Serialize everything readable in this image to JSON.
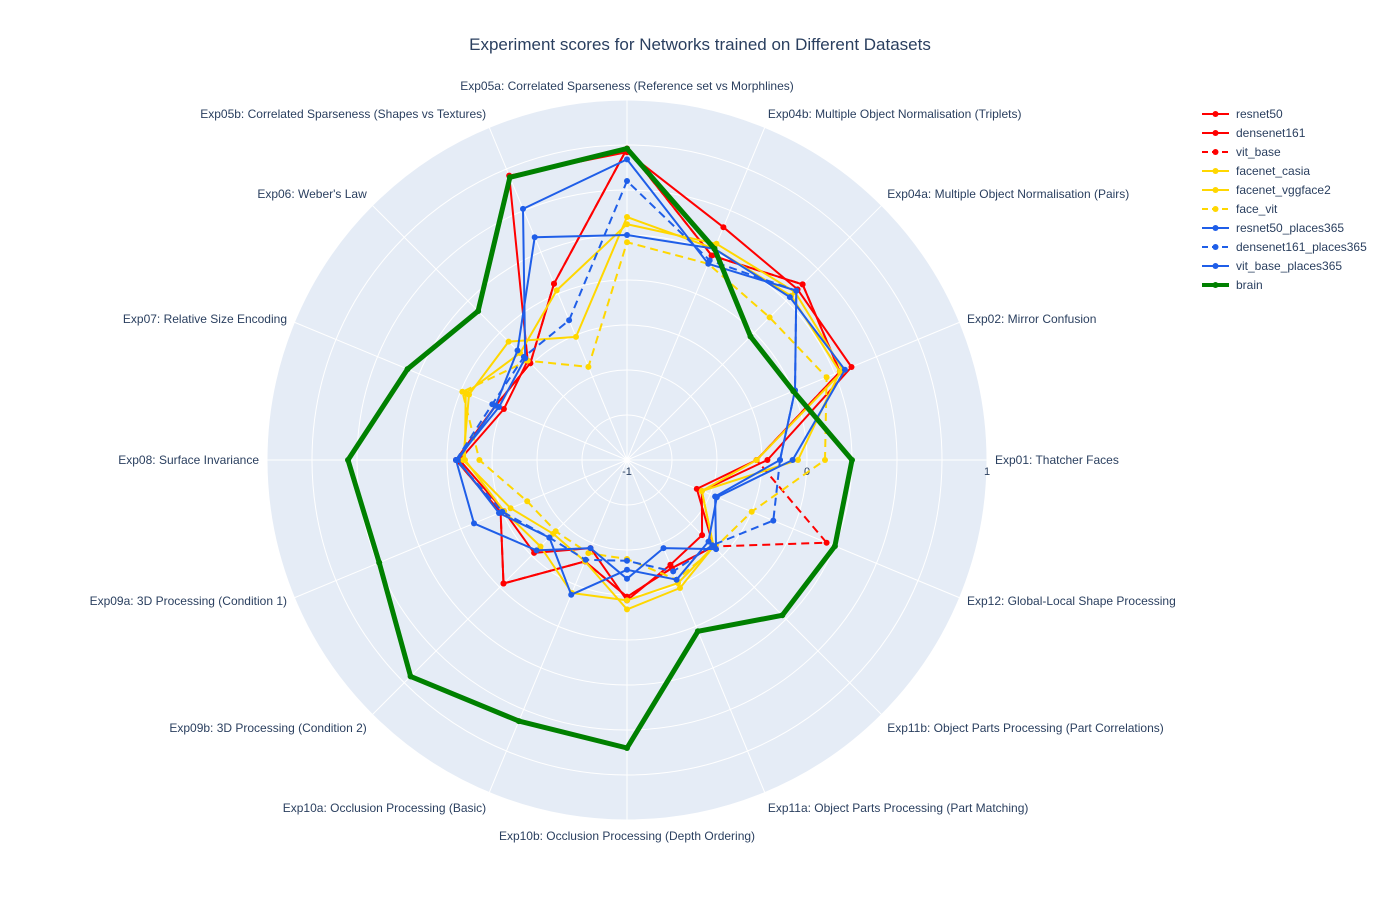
{
  "chart_data": {
    "type": "radar",
    "title": "Experiment scores for Networks trained on Different Datasets",
    "radial_range": [
      -1,
      1
    ],
    "radial_ticks": [
      "-1",
      "0",
      "1"
    ],
    "background_color": "#e5ecf6",
    "categories": [
      "Exp01: Thatcher Faces",
      "Exp02: Mirror Confusion",
      "Exp04a: Multiple Object Normalisation (Pairs)",
      "Exp04b: Multiple Object Normalisation (Triplets)",
      "Exp05a: Correlated Sparseness (Reference set vs Morphlines)",
      "Exp05b: Correlated Sparseness (Shapes vs Textures)",
      "Exp06: Weber's Law",
      "Exp07: Relative Size Encoding",
      "Exp08: Surface Invariance",
      "Exp09a: 3D Processing (Condition 1)",
      "Exp09b: 3D Processing (Condition 2)",
      "Exp10a: Occlusion Processing (Basic)",
      "Exp10b: Occlusion Processing (Depth Ordering)",
      "Exp11a: Object Parts Processing (Part Matching)",
      "Exp11b: Object Parts Processing (Part Correlations)",
      "Exp12: Global-Local Shape Processing"
    ],
    "series": [
      {
        "name": "resnet50",
        "color": "#ff0000",
        "dash": "solid",
        "width": 2,
        "values": [
          -0.28,
          0.28,
          0.38,
          0.23,
          0.73,
          0.06,
          -0.24,
          -0.21,
          -0.05,
          -0.24,
          -0.03,
          -0.39,
          -0.24,
          -0.35,
          -0.32,
          -0.58
        ]
      },
      {
        "name": "densenet161",
        "color": "#ff0000",
        "dash": "solid",
        "width": 2,
        "values": [
          -0.22,
          0.35,
          0.34,
          0.4,
          0.71,
          0.71,
          -0.22,
          -0.26,
          -0.07,
          -0.26,
          -0.27,
          -0.47,
          -0.22,
          -0.37,
          -0.41,
          -0.55
        ]
      },
      {
        "name": "vit_base",
        "color": "#ff0000",
        "dash": "dash",
        "width": 2,
        "values": [
          -0.28,
          0.28,
          0.38,
          0.23,
          0.73,
          0.06,
          -0.24,
          -0.21,
          -0.05,
          -0.24,
          -0.03,
          -0.39,
          -0.24,
          -0.35,
          -0.32,
          0.2
        ]
      },
      {
        "name": "facenet_casia",
        "color": "#ffd700",
        "dash": "solid",
        "width": 2,
        "values": [
          -0.28,
          0.3,
          0.32,
          0.3,
          0.31,
          0.02,
          -0.16,
          -0.03,
          -0.1,
          -0.26,
          -0.32,
          -0.2,
          -0.22,
          -0.26,
          -0.32,
          -0.55
        ]
      },
      {
        "name": "facenet_vggface2",
        "color": "#ffd700",
        "dash": "solid",
        "width": 2,
        "values": [
          -0.05,
          0.28,
          0.29,
          0.27,
          0.35,
          -0.26,
          -0.07,
          -0.05,
          -0.09,
          -0.3,
          -0.42,
          -0.39,
          -0.17,
          -0.23,
          -0.32,
          -0.55
        ]
      },
      {
        "name": "face_vit",
        "color": "#ffd700",
        "dash": "dash",
        "width": 2,
        "values": [
          0.1,
          0.2,
          0.12,
          0.18,
          0.21,
          -0.44,
          -0.22,
          -0.01,
          -0.18,
          -0.4,
          -0.44,
          -0.44,
          -0.45,
          -0.28,
          -0.31,
          -0.25
        ]
      },
      {
        "name": "resnet50_places365",
        "color": "#1f5ee8",
        "dash": "solid",
        "width": 2,
        "values": [
          -0.08,
          0.31,
          0.28,
          0.27,
          0.25,
          0.34,
          -0.14,
          -0.21,
          -0.06,
          -0.23,
          -0.39,
          -0.19,
          -0.39,
          -0.28,
          -0.36,
          -0.46
        ]
      },
      {
        "name": "densenet161_places365",
        "color": "#1f5ee8",
        "dash": "dash",
        "width": 2,
        "values": [
          -0.15,
          0.01,
          0.33,
          0.2,
          0.55,
          -0.16,
          -0.19,
          -0.19,
          -0.05,
          -0.25,
          -0.39,
          -0.4,
          -0.44,
          -0.33,
          -0.33,
          -0.12
        ]
      },
      {
        "name": "vit_base_places365",
        "color": "#1f5ee8",
        "dash": "solid",
        "width": 2,
        "values": [
          -0.15,
          0.01,
          0.33,
          0.18,
          0.67,
          0.51,
          -0.2,
          -0.23,
          -0.05,
          -0.08,
          -0.29,
          -0.47,
          -0.34,
          -0.47,
          -0.3,
          -0.47
        ]
      },
      {
        "name": "brain",
        "color": "#008000",
        "dash": "solid",
        "width": 5,
        "values": [
          0.25,
          0.0,
          -0.03,
          0.27,
          0.73,
          0.7,
          0.17,
          0.32,
          0.55,
          0.49,
          0.7,
          0.57,
          0.6,
          0.03,
          0.22,
          0.25
        ]
      }
    ]
  }
}
